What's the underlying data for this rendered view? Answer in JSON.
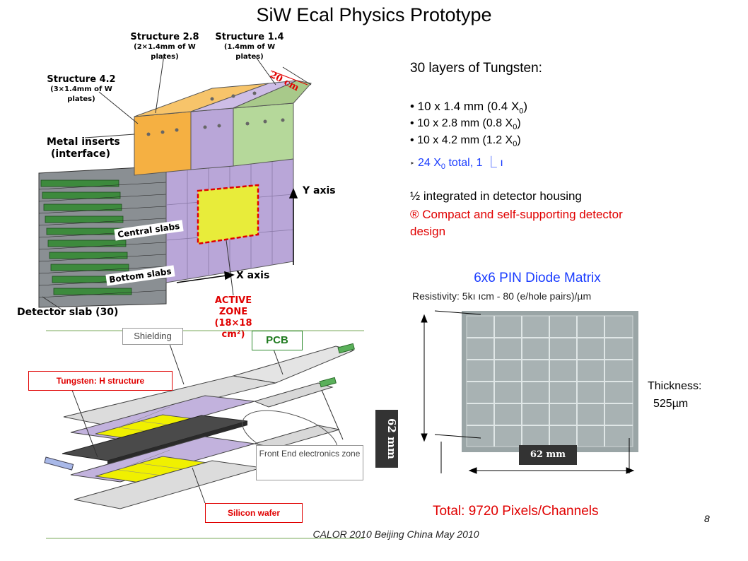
{
  "slide": {
    "title": "SiW Ecal Physics Prototype",
    "page_number": "8",
    "footer": "CALOR 2010 Beijing China May 2010"
  },
  "structure_figure": {
    "structure_28": "Structure 2.8",
    "structure_28_sub": "(2×1.4mm of W plates)",
    "structure_14": "Structure 1.4",
    "structure_14_sub": "(1.4mm of W plates)",
    "structure_42": "Structure 4.2",
    "structure_42_sub": "(3×1.4mm of W plates)",
    "metal_inserts": "Metal inserts",
    "metal_inserts_sub": "(interface)",
    "dim_20cm": "20 cm",
    "central_slabs": "Central slabs",
    "bottom_slabs": "Bottom slabs",
    "y_axis": "Y axis",
    "x_axis": "X axis",
    "active_zone": "ACTIVE ZONE",
    "active_zone_sub": "(18×18 cm²)",
    "detector_slab": "Detector slab (30)"
  },
  "layers": {
    "heading": "30 layers of Tungsten:",
    "items": [
      {
        "bullet": "•",
        "text": " 10 x 1.4 mm (0.4 X",
        "sub": "0",
        "end": ")"
      },
      {
        "bullet": "•",
        "text": "10 x 2.8 mm (0.8 X",
        "sub": "0",
        "end": ")"
      },
      {
        "bullet": "•",
        "text": "10 x 4.2 mm (1.2 X",
        "sub": "0",
        "end": ")"
      }
    ],
    "total_arrow": "‣",
    "total_text": "24 X",
    "total_sub": "0",
    "total_end": " total, 1 ⎿ ı",
    "integrated": "½ integrated in detector housing",
    "compact_line1": "® Compact and self-supporting detector",
    "compact_line2": "design"
  },
  "exploded_figure": {
    "shielding": "Shielding",
    "pcb": "PCB",
    "tungsten": "Tungsten: H structure",
    "front_end": "Front End electronics zone",
    "silicon_wafer": "Silicon wafer",
    "dim_62mm_vertical": "62 mm"
  },
  "pin_matrix": {
    "title": "6x6 PIN Diode Matrix",
    "resistivity": "Resistivity: 5kı ıcm - 80 (e/hole pairs)/µm",
    "thickness_label": "Thickness:",
    "thickness_value": "525µm",
    "dim_62mm": "62 mm",
    "total": "Total: 9720 Pixels/Channels"
  },
  "colors": {
    "accent_red": "#e00000",
    "accent_blue": "#1a3cff",
    "orange_block": "#f5b042",
    "purple_block": "#b9a6d8",
    "green_block": "#b5d89a",
    "active_yellow": "#e8ec3a",
    "silicon_yellow": "#f0f000",
    "wafer_grey": "#9aa5a6"
  }
}
